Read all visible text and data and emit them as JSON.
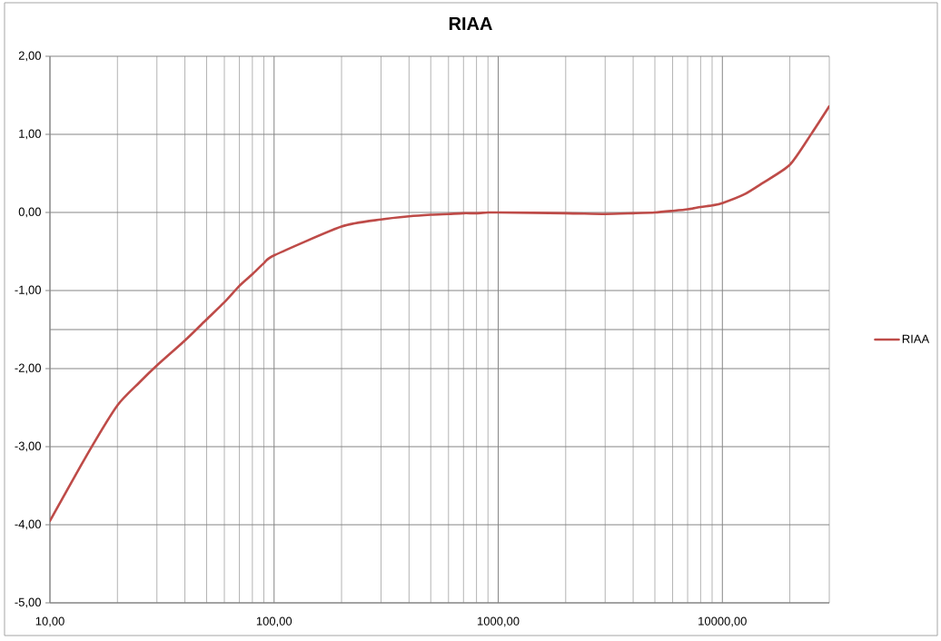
{
  "chart_data": {
    "type": "line",
    "title": "RIAA",
    "x": [
      10,
      15,
      20,
      25,
      30,
      40,
      50,
      60,
      70,
      80,
      90,
      100,
      200,
      300,
      400,
      500,
      600,
      700,
      800,
      900,
      1000,
      2000,
      3000,
      4000,
      5000,
      6000,
      7000,
      8000,
      9000,
      10000,
      12500,
      15000,
      20000,
      25000,
      30000
    ],
    "series": [
      {
        "name": "RIAA",
        "color": "#be4b48",
        "values": [
          -3.95,
          -3.05,
          -2.47,
          -2.18,
          -1.96,
          -1.64,
          -1.37,
          -1.15,
          -0.94,
          -0.79,
          -0.65,
          -0.55,
          -0.18,
          -0.09,
          -0.05,
          -0.03,
          -0.02,
          -0.01,
          -0.01,
          0,
          0,
          -0.01,
          -0.02,
          -0.01,
          0,
          0.02,
          0.04,
          0.07,
          0.09,
          0.12,
          0.23,
          0.37,
          0.61,
          1.01,
          1.36
        ]
      }
    ],
    "xlim": [
      10,
      30000
    ],
    "ylim": [
      -5,
      2
    ],
    "xticks": [
      {
        "value": 10,
        "label": "10,00"
      },
      {
        "value": 100,
        "label": "100,00"
      },
      {
        "value": 1000,
        "label": "1000,00"
      },
      {
        "value": 10000,
        "label": "10000,00"
      }
    ],
    "yticks": [
      {
        "value": -5,
        "label": "-5,00"
      },
      {
        "value": -4,
        "label": "-4,00"
      },
      {
        "value": -3,
        "label": "-3,00"
      },
      {
        "value": -2,
        "label": "-2,00"
      },
      {
        "value": -1,
        "label": "-1,00"
      },
      {
        "value": 0,
        "label": "0,00"
      },
      {
        "value": 1,
        "label": "1,00"
      },
      {
        "value": 2,
        "label": "2,00"
      }
    ],
    "log": "x",
    "grid": true,
    "legend": "right",
    "marker": "none",
    "line_style": "solid",
    "ref_lines": [
      {
        "axis": "y",
        "value": -1.5,
        "color": "#868686"
      }
    ]
  }
}
